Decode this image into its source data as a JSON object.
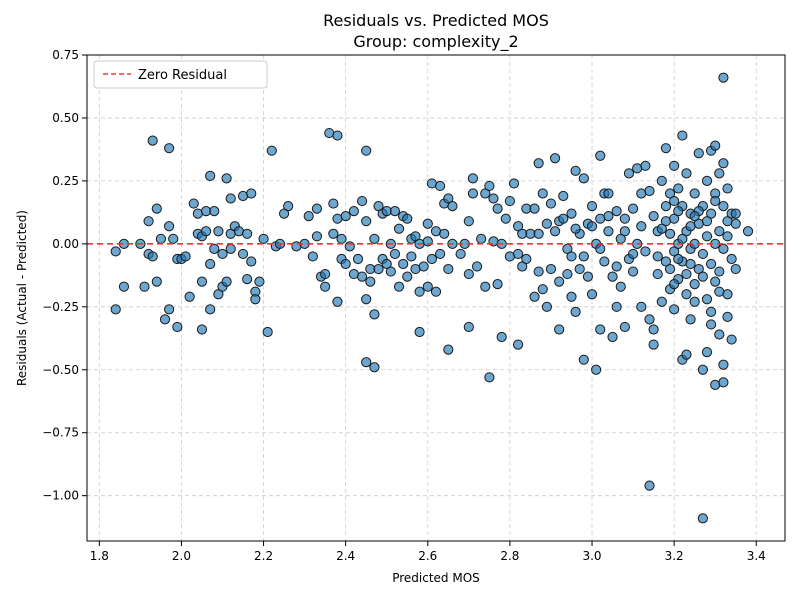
{
  "chart_data": {
    "type": "scatter",
    "title": "Residuals vs. Predicted MOS",
    "subtitle": "Group: complexity_2",
    "xlabel": "Predicted MOS",
    "ylabel": "Residuals (Actual - Predicted)",
    "xlim": [
      1.77,
      3.47
    ],
    "ylim": [
      -1.18,
      0.75
    ],
    "xticks": [
      "1.8",
      "2.0",
      "2.2",
      "2.4",
      "2.6",
      "2.8",
      "3.0",
      "3.2",
      "3.4"
    ],
    "yticks": [
      "−1.00",
      "−0.75",
      "−0.50",
      "−0.25",
      "0.00",
      "0.25",
      "0.50",
      "0.75"
    ],
    "grid": true,
    "legend": {
      "position": "top-left",
      "label": "Zero Residual"
    },
    "reference_line": {
      "y": 0,
      "color": "#e53935",
      "style": "dashed"
    },
    "point_color": "#1f77b4",
    "points": [
      [
        1.84,
        -0.26
      ],
      [
        1.84,
        -0.03
      ],
      [
        1.86,
        0.0
      ],
      [
        1.86,
        -0.17
      ],
      [
        1.9,
        0.0
      ],
      [
        1.91,
        -0.17
      ],
      [
        1.92,
        -0.04
      ],
      [
        1.92,
        0.09
      ],
      [
        1.93,
        -0.05
      ],
      [
        1.93,
        0.41
      ],
      [
        1.94,
        0.14
      ],
      [
        1.94,
        -0.15
      ],
      [
        1.95,
        0.02
      ],
      [
        1.96,
        -0.3
      ],
      [
        1.97,
        0.38
      ],
      [
        1.97,
        -0.26
      ],
      [
        1.97,
        0.07
      ],
      [
        1.98,
        0.02
      ],
      [
        1.99,
        -0.06
      ],
      [
        1.99,
        -0.33
      ],
      [
        2.0,
        -0.06
      ],
      [
        2.01,
        -0.05
      ],
      [
        2.02,
        -0.21
      ],
      [
        2.03,
        0.16
      ],
      [
        2.04,
        0.12
      ],
      [
        2.04,
        0.04
      ],
      [
        2.05,
        -0.34
      ],
      [
        2.05,
        0.03
      ],
      [
        2.05,
        -0.15
      ],
      [
        2.06,
        0.13
      ],
      [
        2.06,
        0.05
      ],
      [
        2.07,
        -0.26
      ],
      [
        2.07,
        -0.08
      ],
      [
        2.07,
        0.27
      ],
      [
        2.08,
        -0.02
      ],
      [
        2.08,
        0.13
      ],
      [
        2.09,
        -0.2
      ],
      [
        2.09,
        0.05
      ],
      [
        2.1,
        -0.17
      ],
      [
        2.1,
        -0.04
      ],
      [
        2.11,
        0.26
      ],
      [
        2.11,
        -0.15
      ],
      [
        2.12,
        0.04
      ],
      [
        2.12,
        0.18
      ],
      [
        2.12,
        -0.02
      ],
      [
        2.13,
        0.07
      ],
      [
        2.14,
        0.05
      ],
      [
        2.15,
        -0.04
      ],
      [
        2.15,
        0.19
      ],
      [
        2.16,
        -0.14
      ],
      [
        2.16,
        0.04
      ],
      [
        2.17,
        0.2
      ],
      [
        2.17,
        -0.07
      ],
      [
        2.18,
        -0.19
      ],
      [
        2.18,
        -0.22
      ],
      [
        2.19,
        -0.15
      ],
      [
        2.2,
        0.02
      ],
      [
        2.21,
        -0.35
      ],
      [
        2.22,
        0.37
      ],
      [
        2.23,
        -0.01
      ],
      [
        2.24,
        0.0
      ],
      [
        2.25,
        0.12
      ],
      [
        2.26,
        0.15
      ],
      [
        2.28,
        -0.01
      ],
      [
        2.3,
        0.0
      ],
      [
        2.31,
        0.11
      ],
      [
        2.32,
        -0.05
      ],
      [
        2.33,
        0.03
      ],
      [
        2.33,
        0.14
      ],
      [
        2.34,
        -0.13
      ],
      [
        2.35,
        -0.12
      ],
      [
        2.35,
        -0.17
      ],
      [
        2.36,
        0.44
      ],
      [
        2.37,
        0.04
      ],
      [
        2.37,
        0.16
      ],
      [
        2.38,
        0.43
      ],
      [
        2.38,
        0.1
      ],
      [
        2.38,
        -0.23
      ],
      [
        2.39,
        -0.06
      ],
      [
        2.39,
        0.02
      ],
      [
        2.4,
        -0.08
      ],
      [
        2.4,
        0.11
      ],
      [
        2.41,
        -0.01
      ],
      [
        2.42,
        -0.12
      ],
      [
        2.42,
        0.13
      ],
      [
        2.43,
        -0.06
      ],
      [
        2.44,
        0.17
      ],
      [
        2.44,
        -0.13
      ],
      [
        2.45,
        0.37
      ],
      [
        2.45,
        0.09
      ],
      [
        2.45,
        -0.47
      ],
      [
        2.45,
        -0.22
      ],
      [
        2.46,
        -0.1
      ],
      [
        2.46,
        -0.15
      ],
      [
        2.47,
        0.02
      ],
      [
        2.47,
        -0.49
      ],
      [
        2.47,
        -0.28
      ],
      [
        2.48,
        0.15
      ],
      [
        2.48,
        -0.1
      ],
      [
        2.49,
        0.12
      ],
      [
        2.49,
        -0.06
      ],
      [
        2.5,
        -0.08
      ],
      [
        2.5,
        0.13
      ],
      [
        2.51,
        0.0
      ],
      [
        2.51,
        -0.11
      ],
      [
        2.52,
        0.13
      ],
      [
        2.52,
        -0.04
      ],
      [
        2.53,
        -0.17
      ],
      [
        2.53,
        0.06
      ],
      [
        2.54,
        0.11
      ],
      [
        2.54,
        -0.08
      ],
      [
        2.55,
        -0.13
      ],
      [
        2.55,
        0.1
      ],
      [
        2.56,
        0.02
      ],
      [
        2.56,
        -0.05
      ],
      [
        2.57,
        -0.1
      ],
      [
        2.57,
        0.03
      ],
      [
        2.58,
        -0.19
      ],
      [
        2.58,
        0.0
      ],
      [
        2.58,
        -0.35
      ],
      [
        2.59,
        -0.09
      ],
      [
        2.6,
        0.08
      ],
      [
        2.6,
        -0.17
      ],
      [
        2.6,
        0.01
      ],
      [
        2.61,
        0.24
      ],
      [
        2.61,
        -0.06
      ],
      [
        2.62,
        0.05
      ],
      [
        2.62,
        -0.19
      ],
      [
        2.63,
        0.23
      ],
      [
        2.63,
        -0.04
      ],
      [
        2.64,
        0.16
      ],
      [
        2.64,
        0.04
      ],
      [
        2.65,
        -0.42
      ],
      [
        2.65,
        0.18
      ],
      [
        2.65,
        -0.1
      ],
      [
        2.66,
        0.15
      ],
      [
        2.66,
        0.0
      ],
      [
        2.68,
        -0.04
      ],
      [
        2.69,
        0.0
      ],
      [
        2.7,
        0.09
      ],
      [
        2.7,
        -0.33
      ],
      [
        2.7,
        -0.12
      ],
      [
        2.71,
        0.26
      ],
      [
        2.71,
        0.2
      ],
      [
        2.72,
        -0.09
      ],
      [
        2.73,
        0.02
      ],
      [
        2.74,
        0.2
      ],
      [
        2.74,
        -0.17
      ],
      [
        2.75,
        -0.53
      ],
      [
        2.75,
        0.23
      ],
      [
        2.76,
        0.18
      ],
      [
        2.76,
        0.01
      ],
      [
        2.77,
        -0.16
      ],
      [
        2.77,
        0.14
      ],
      [
        2.78,
        -0.37
      ],
      [
        2.78,
        0.0
      ],
      [
        2.79,
        0.1
      ],
      [
        2.8,
        -0.05
      ],
      [
        2.8,
        0.17
      ],
      [
        2.81,
        0.24
      ],
      [
        2.82,
        -0.4
      ],
      [
        2.82,
        0.07
      ],
      [
        2.82,
        -0.04
      ],
      [
        2.83,
        -0.09
      ],
      [
        2.83,
        0.04
      ],
      [
        2.84,
        0.14
      ],
      [
        2.84,
        -0.06
      ],
      [
        2.85,
        0.04
      ],
      [
        2.86,
        0.14
      ],
      [
        2.86,
        -0.21
      ],
      [
        2.87,
        0.32
      ],
      [
        2.87,
        0.04
      ],
      [
        2.87,
        -0.11
      ],
      [
        2.88,
        0.2
      ],
      [
        2.88,
        -0.18
      ],
      [
        2.89,
        0.08
      ],
      [
        2.89,
        -0.25
      ],
      [
        2.9,
        0.16
      ],
      [
        2.9,
        -0.1
      ],
      [
        2.91,
        0.34
      ],
      [
        2.91,
        0.05
      ],
      [
        2.92,
        -0.34
      ],
      [
        2.92,
        0.09
      ],
      [
        2.92,
        -0.15
      ],
      [
        2.93,
        0.19
      ],
      [
        2.94,
        -0.02
      ],
      [
        2.95,
        -0.21
      ],
      [
        2.95,
        0.12
      ],
      [
        2.95,
        -0.05
      ],
      [
        2.96,
        -0.27
      ],
      [
        2.96,
        0.29
      ],
      [
        2.97,
        0.04
      ],
      [
        2.97,
        -0.1
      ],
      [
        2.98,
        -0.46
      ],
      [
        2.98,
        0.26
      ],
      [
        2.99,
        0.08
      ],
      [
        2.99,
        -0.13
      ],
      [
        3.0,
        -0.2
      ],
      [
        3.0,
        0.15
      ],
      [
        3.01,
        0.0
      ],
      [
        3.01,
        -0.5
      ],
      [
        3.02,
        0.35
      ],
      [
        3.02,
        0.1
      ],
      [
        3.02,
        -0.34
      ],
      [
        3.03,
        0.2
      ],
      [
        3.03,
        -0.07
      ],
      [
        3.04,
        0.2
      ],
      [
        3.04,
        0.05
      ],
      [
        3.05,
        -0.37
      ],
      [
        3.05,
        -0.13
      ],
      [
        3.06,
        0.13
      ],
      [
        3.06,
        -0.25
      ],
      [
        3.07,
        0.02
      ],
      [
        3.07,
        -0.17
      ],
      [
        3.08,
        0.05
      ],
      [
        3.08,
        -0.33
      ],
      [
        3.09,
        0.28
      ],
      [
        3.09,
        -0.06
      ],
      [
        3.1,
        0.14
      ],
      [
        3.1,
        -0.11
      ],
      [
        3.11,
        0.3
      ],
      [
        3.11,
        0.0
      ],
      [
        3.12,
        -0.25
      ],
      [
        3.12,
        0.2
      ],
      [
        3.13,
        -0.03
      ],
      [
        3.13,
        0.31
      ],
      [
        3.14,
        -0.3
      ],
      [
        3.14,
        -0.96
      ],
      [
        3.15,
        0.11
      ],
      [
        3.15,
        -0.4
      ],
      [
        3.15,
        -0.34
      ],
      [
        3.16,
        0.05
      ],
      [
        3.16,
        -0.12
      ],
      [
        3.17,
        0.25
      ],
      [
        3.17,
        -0.23
      ],
      [
        3.18,
        0.38
      ],
      [
        3.18,
        0.15
      ],
      [
        3.18,
        -0.07
      ],
      [
        3.19,
        0.2
      ],
      [
        3.19,
        0.04
      ],
      [
        3.19,
        -0.18
      ],
      [
        3.2,
        0.31
      ],
      [
        3.2,
        0.1
      ],
      [
        3.2,
        -0.03
      ],
      [
        3.2,
        -0.26
      ],
      [
        3.21,
        0.22
      ],
      [
        3.21,
        0.0
      ],
      [
        3.21,
        -0.14
      ],
      [
        3.22,
        0.43
      ],
      [
        3.22,
        0.15
      ],
      [
        3.22,
        -0.46
      ],
      [
        3.22,
        -0.07
      ],
      [
        3.23,
        0.28
      ],
      [
        3.23,
        0.05
      ],
      [
        3.23,
        -0.2
      ],
      [
        3.23,
        -0.44
      ],
      [
        3.24,
        0.12
      ],
      [
        3.24,
        -0.02
      ],
      [
        3.24,
        -0.3
      ],
      [
        3.25,
        0.2
      ],
      [
        3.25,
        0.0
      ],
      [
        3.25,
        -0.16
      ],
      [
        3.26,
        0.36
      ],
      [
        3.26,
        0.08
      ],
      [
        3.26,
        -0.1
      ],
      [
        3.27,
        0.15
      ],
      [
        3.27,
        -0.5
      ],
      [
        3.27,
        -0.04
      ],
      [
        3.27,
        -1.09
      ],
      [
        3.28,
        0.25
      ],
      [
        3.28,
        0.03
      ],
      [
        3.28,
        -0.22
      ],
      [
        3.28,
        -0.43
      ],
      [
        3.29,
        0.37
      ],
      [
        3.29,
        0.12
      ],
      [
        3.29,
        -0.08
      ],
      [
        3.29,
        -0.32
      ],
      [
        3.3,
        0.39
      ],
      [
        3.3,
        0.2
      ],
      [
        3.3,
        -0.56
      ],
      [
        3.3,
        -0.15
      ],
      [
        3.3,
        0.0
      ],
      [
        3.31,
        0.28
      ],
      [
        3.31,
        0.05
      ],
      [
        3.31,
        -0.36
      ],
      [
        3.31,
        -0.11
      ],
      [
        3.32,
        0.66
      ],
      [
        3.32,
        0.32
      ],
      [
        3.32,
        0.15
      ],
      [
        3.32,
        -0.55
      ],
      [
        3.32,
        -0.48
      ],
      [
        3.32,
        -0.02
      ],
      [
        3.33,
        0.22
      ],
      [
        3.33,
        -0.29
      ],
      [
        3.33,
        0.09
      ],
      [
        3.33,
        -0.2
      ],
      [
        3.34,
        0.12
      ],
      [
        3.34,
        -0.06
      ],
      [
        3.34,
        -0.38
      ],
      [
        3.35,
        0.08
      ],
      [
        3.35,
        -0.1
      ],
      [
        3.35,
        0.12
      ],
      [
        3.38,
        0.05
      ],
      [
        3.18,
        0.09
      ],
      [
        3.19,
        -0.1
      ],
      [
        3.2,
        0.17
      ],
      [
        3.21,
        -0.06
      ],
      [
        3.22,
        0.02
      ],
      [
        3.23,
        -0.12
      ],
      [
        3.24,
        0.07
      ],
      [
        3.25,
        -0.23
      ],
      [
        3.26,
        0.13
      ],
      [
        3.27,
        -0.13
      ],
      [
        3.28,
        0.09
      ],
      [
        3.29,
        -0.27
      ],
      [
        3.3,
        0.17
      ],
      [
        3.31,
        -0.19
      ],
      [
        3.33,
        0.03
      ],
      [
        3.25,
        0.11
      ],
      [
        3.24,
        -0.08
      ],
      [
        3.21,
        0.13
      ],
      [
        3.2,
        -0.16
      ],
      [
        3.17,
        0.06
      ],
      [
        3.16,
        -0.05
      ],
      [
        3.14,
        0.21
      ],
      [
        3.12,
        0.07
      ],
      [
        3.1,
        -0.04
      ],
      [
        3.08,
        0.1
      ],
      [
        3.06,
        -0.09
      ],
      [
        3.04,
        0.11
      ],
      [
        3.02,
        -0.02
      ],
      [
        3.0,
        0.07
      ],
      [
        2.98,
        -0.05
      ],
      [
        2.96,
        0.06
      ],
      [
        2.94,
        -0.12
      ],
      [
        2.93,
        0.1
      ]
    ]
  }
}
